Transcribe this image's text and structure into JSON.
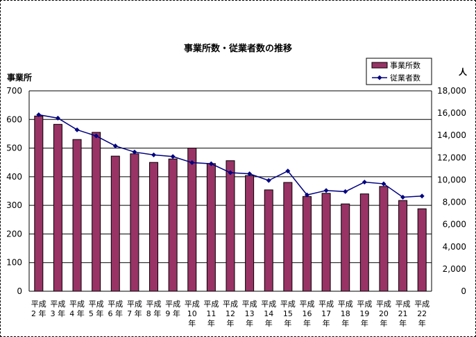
{
  "chart_data": {
    "type": "bar",
    "title": "事業所数・従業者数の推移",
    "categories": [
      [
        "平成",
        "2 年"
      ],
      [
        "平成",
        "3 年"
      ],
      [
        "平成",
        "4 年"
      ],
      [
        "平成",
        "5 年"
      ],
      [
        "平成",
        "6 年"
      ],
      [
        "平成",
        "7 年"
      ],
      [
        "平成",
        "8 年"
      ],
      [
        "平成",
        "9 年"
      ],
      [
        "平成",
        "10",
        "年"
      ],
      [
        "平成",
        "11",
        "年"
      ],
      [
        "平成",
        "12",
        "年"
      ],
      [
        "平成",
        "13",
        "年"
      ],
      [
        "平成",
        "14",
        "年"
      ],
      [
        "平成",
        "15",
        "年"
      ],
      [
        "平成",
        "16",
        "年"
      ],
      [
        "平成",
        "17",
        "年"
      ],
      [
        "平成",
        "18",
        "年"
      ],
      [
        "平成",
        "19",
        "年"
      ],
      [
        "平成",
        "20",
        "年"
      ],
      [
        "平成",
        "21",
        "年"
      ],
      [
        "平成",
        "22",
        "年"
      ]
    ],
    "series": [
      {
        "name": "事業所数",
        "type": "bar",
        "axis": "left",
        "color": "#993366",
        "values": [
          612,
          583,
          530,
          555,
          472,
          480,
          450,
          462,
          500,
          446,
          456,
          404,
          354,
          380,
          331,
          342,
          305,
          340,
          366,
          317,
          288
        ]
      },
      {
        "name": "従業者数",
        "type": "line",
        "axis": "right",
        "color": "#000080",
        "values": [
          15850,
          15550,
          14500,
          13950,
          13050,
          12500,
          12250,
          12100,
          11550,
          11450,
          10650,
          10550,
          9950,
          10800,
          8650,
          9050,
          8950,
          9800,
          9650,
          8450,
          8550
        ]
      }
    ],
    "y_left": {
      "label": "事業所",
      "min": 0,
      "max": 700,
      "ticks": [
        "0",
        "100",
        "200",
        "300",
        "400",
        "500",
        "600",
        "700"
      ]
    },
    "y_right": {
      "label": "人",
      "min": 0,
      "max": 18000,
      "ticks": [
        "0",
        "2,000",
        "4,000",
        "6,000",
        "8,000",
        "10,000",
        "12,000",
        "14,000",
        "16,000",
        "18,000"
      ]
    },
    "grid": true,
    "legend_position": "top-right"
  }
}
